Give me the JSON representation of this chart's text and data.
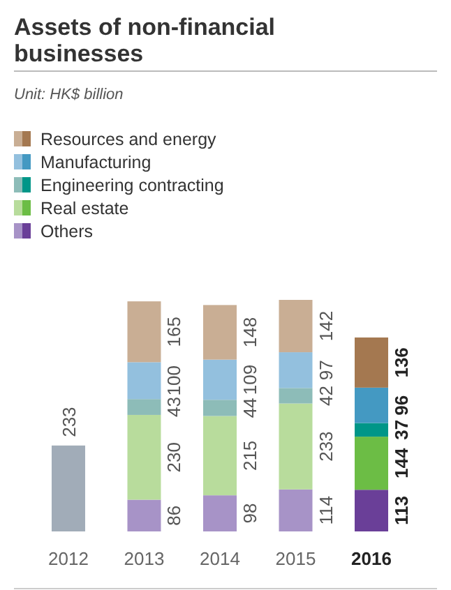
{
  "chart_data": {
    "type": "bar",
    "title": "Assets of non-financial businesses",
    "subtitle": "Unit: HK$ billion",
    "categories": [
      "2012",
      "2013",
      "2014",
      "2015",
      "2016"
    ],
    "stacked": true,
    "data_labels": true,
    "legend": "top left",
    "series": [
      {
        "name": "Others",
        "colors": [
          "#a793c7",
          "#a793c7",
          "#a793c7",
          "#a793c7",
          "#6a3f98"
        ],
        "values": [
          null,
          86,
          98,
          114,
          113
        ]
      },
      {
        "name": "Real estate",
        "colors": [
          "#b8dc9c",
          "#b8dc9c",
          "#b8dc9c",
          "#b8dc9c",
          "#6cbd45"
        ],
        "values": [
          null,
          230,
          215,
          233,
          144
        ]
      },
      {
        "name": "Engineering contracting",
        "colors": [
          "#8dbcb8",
          "#8dbcb8",
          "#8dbcb8",
          "#8dbcb8",
          "#009688"
        ],
        "values": [
          null,
          43,
          44,
          42,
          37
        ]
      },
      {
        "name": "Manufacturing",
        "colors": [
          "#93c0de",
          "#93c0de",
          "#93c0de",
          "#93c0de",
          "#4499c2"
        ],
        "values": [
          null,
          100,
          109,
          97,
          96
        ]
      },
      {
        "name": "Resources and energy",
        "colors": [
          "#c9ae94",
          "#c9ae94",
          "#c9ae94",
          "#c9ae94",
          "#a47850"
        ],
        "values": [
          null,
          165,
          148,
          142,
          136
        ]
      },
      {
        "color": "#a1acb8",
        "values": [
          233,
          null,
          null,
          null,
          null
        ]
      }
    ]
  }
}
